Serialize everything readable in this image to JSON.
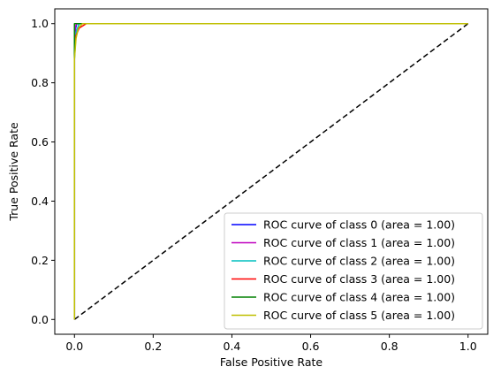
{
  "chart_data": {
    "type": "line",
    "xlabel": "False Positive Rate",
    "ylabel": "True Positive Rate",
    "xlim": [
      -0.05,
      1.05
    ],
    "ylim": [
      -0.05,
      1.05
    ],
    "xticks": [
      0.0,
      0.2,
      0.4,
      0.6,
      0.8,
      1.0
    ],
    "yticks": [
      0.0,
      0.2,
      0.4,
      0.6,
      0.8,
      1.0
    ],
    "xtick_labels": [
      "0.0",
      "0.2",
      "0.4",
      "0.6",
      "0.8",
      "1.0"
    ],
    "ytick_labels": [
      "0.0",
      "0.2",
      "0.4",
      "0.6",
      "0.8",
      "1.0"
    ],
    "grid": false,
    "legend_position": "lower-right",
    "reference_line": {
      "x": [
        0,
        1
      ],
      "y": [
        0,
        1
      ],
      "color": "#000000",
      "style": "dashed"
    },
    "series": [
      {
        "name": "ROC curve of class 0 (area = 1.00)",
        "color": "#0000ff",
        "x": [
          0,
          0,
          0.003,
          0.006,
          1.0
        ],
        "y": [
          0,
          0.9,
          0.985,
          1.0,
          1.0
        ]
      },
      {
        "name": "ROC curve of class 1 (area = 1.00)",
        "color": "#bf00bf",
        "x": [
          0,
          0,
          0.002,
          0.006,
          1.0
        ],
        "y": [
          0,
          0.93,
          0.99,
          1.0,
          1.0
        ]
      },
      {
        "name": "ROC curve of class 2 (area = 1.00)",
        "color": "#00bfbf",
        "x": [
          0,
          0,
          0.004,
          0.012,
          1.0
        ],
        "y": [
          0,
          0.88,
          0.97,
          1.0,
          1.0
        ]
      },
      {
        "name": "ROC curve of class 3 (area = 1.00)",
        "color": "#ff0000",
        "x": [
          0,
          0,
          0.004,
          0.012,
          0.03,
          1.0
        ],
        "y": [
          0,
          0.9,
          0.96,
          0.985,
          1.0,
          1.0
        ]
      },
      {
        "name": "ROC curve of class 4 (area = 1.00)",
        "color": "#008000",
        "x": [
          0,
          0,
          0.012,
          0.025,
          1.0
        ],
        "y": [
          0,
          1.0,
          1.0,
          1.0,
          1.0
        ]
      },
      {
        "name": "ROC curve of class 5 (area = 1.00)",
        "color": "#bfbf00",
        "x": [
          0,
          0,
          0.004,
          0.01,
          0.02,
          1.0
        ],
        "y": [
          0,
          0.88,
          0.95,
          0.985,
          1.0,
          1.0
        ]
      }
    ]
  }
}
